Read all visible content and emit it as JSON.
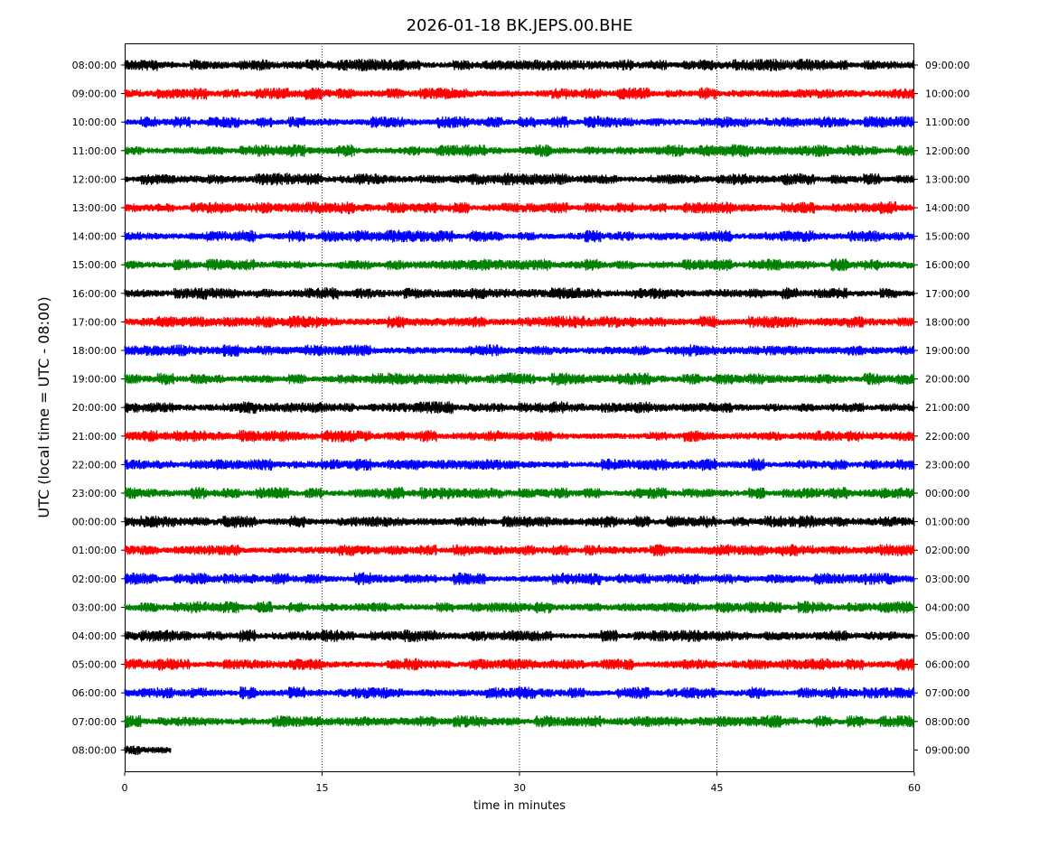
{
  "chart_data": {
    "type": "line",
    "title": "2026-01-18 BK.JEPS.00.BHE",
    "xlabel": "time in minutes",
    "ylabel": "UTC (local time = UTC - 08:00)",
    "xlim": [
      0,
      60
    ],
    "x_ticks": [
      0,
      15,
      30,
      45,
      60
    ],
    "grid_vertical_lines": [
      15,
      30,
      45
    ],
    "left_tick_labels": [
      "08:00:00",
      "09:00:00",
      "10:00:00",
      "11:00:00",
      "12:00:00",
      "13:00:00",
      "14:00:00",
      "15:00:00",
      "16:00:00",
      "17:00:00",
      "18:00:00",
      "19:00:00",
      "20:00:00",
      "21:00:00",
      "22:00:00",
      "23:00:00",
      "00:00:00",
      "01:00:00",
      "02:00:00",
      "03:00:00",
      "04:00:00",
      "05:00:00",
      "06:00:00",
      "07:00:00",
      "08:00:00"
    ],
    "right_tick_labels": [
      "09:00:00",
      "10:00:00",
      "11:00:00",
      "12:00:00",
      "13:00:00",
      "14:00:00",
      "15:00:00",
      "16:00:00",
      "17:00:00",
      "18:00:00",
      "19:00:00",
      "20:00:00",
      "21:00:00",
      "22:00:00",
      "23:00:00",
      "00:00:00",
      "01:00:00",
      "02:00:00",
      "03:00:00",
      "04:00:00",
      "05:00:00",
      "06:00:00",
      "07:00:00",
      "08:00:00",
      "09:00:00"
    ],
    "trace_colors": [
      "#000000",
      "#ff0000",
      "#0000ff",
      "#008000"
    ],
    "trace_end_minutes": [
      60,
      60,
      60,
      60,
      60,
      60,
      60,
      60,
      60,
      60,
      60,
      60,
      60,
      60,
      60,
      60,
      60,
      60,
      60,
      60,
      60,
      60,
      60,
      60,
      3.5
    ]
  }
}
